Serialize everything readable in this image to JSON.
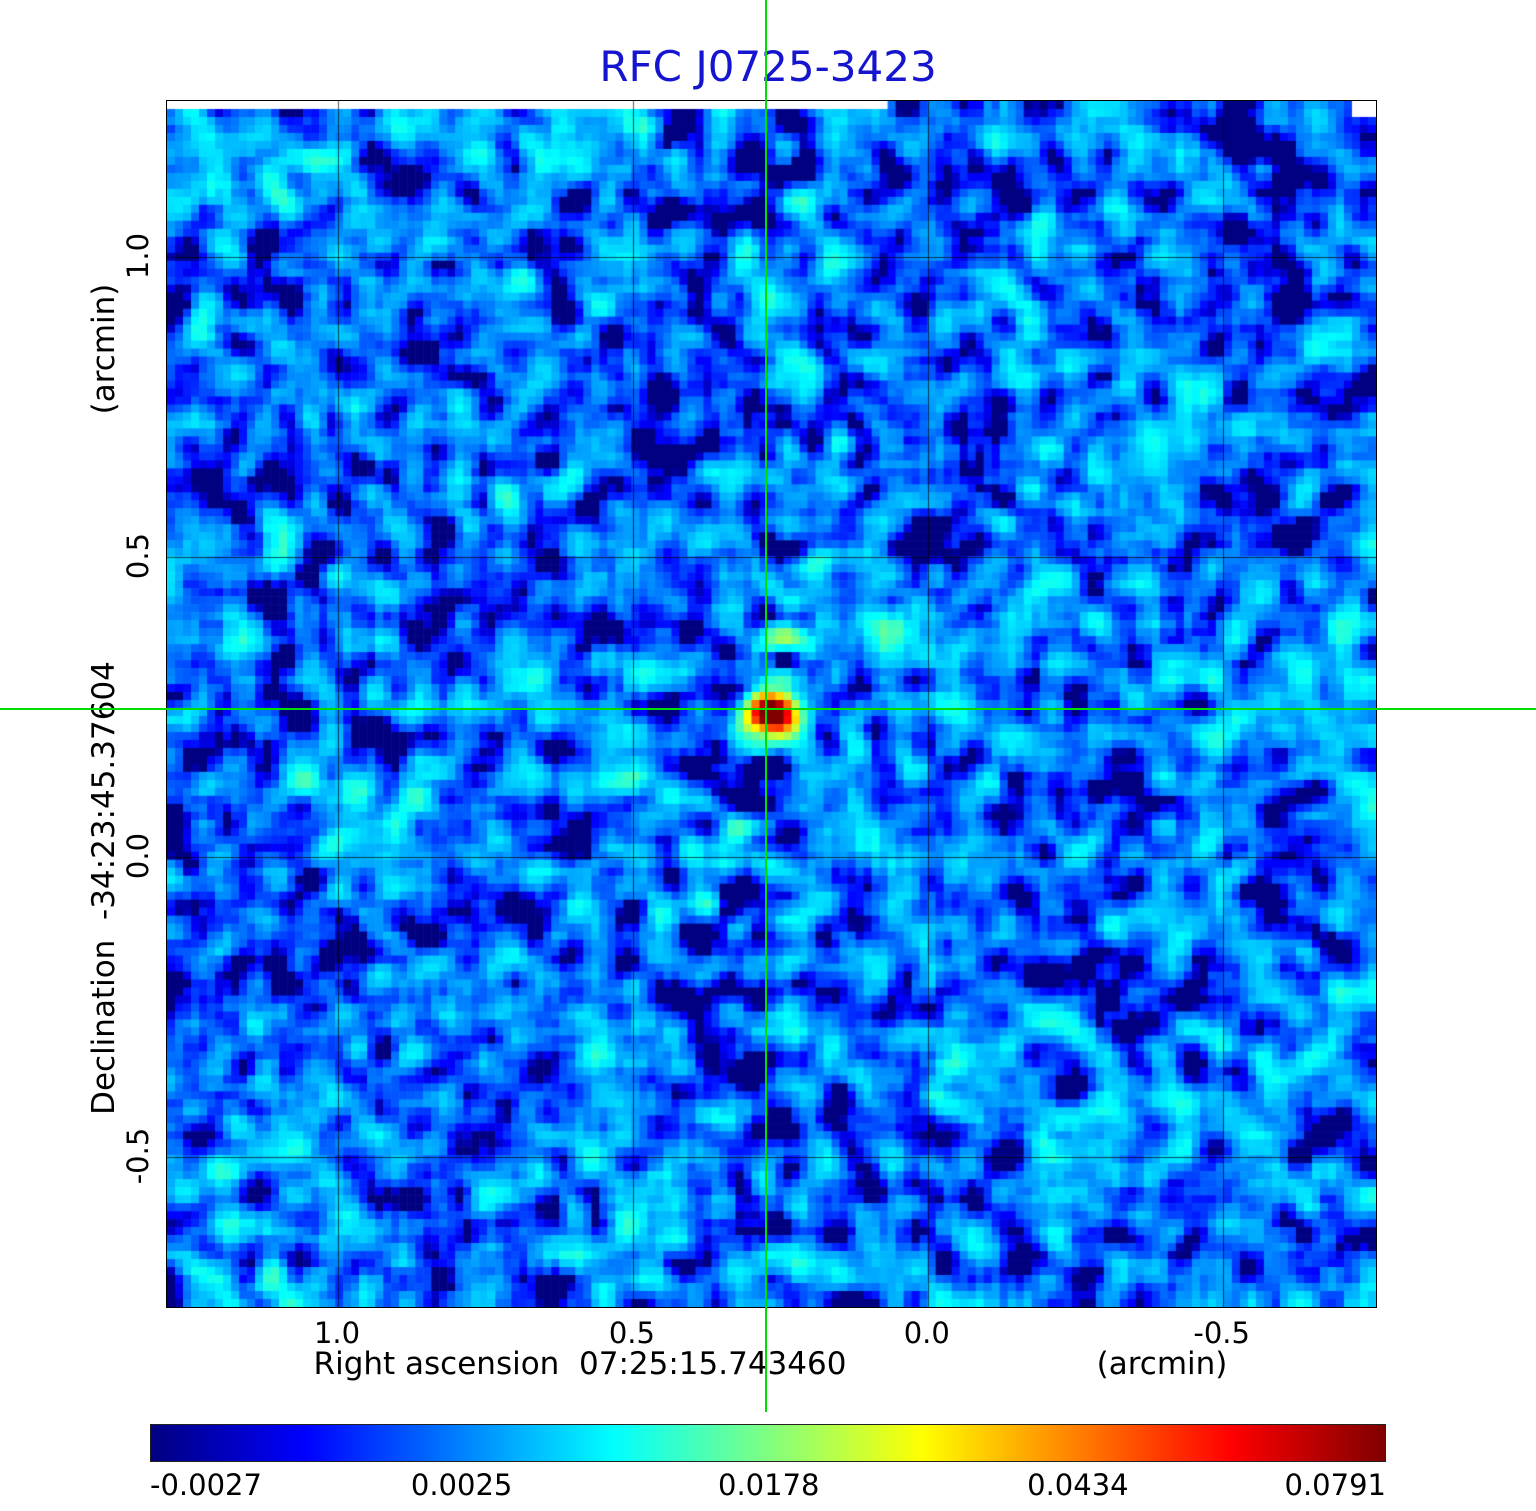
{
  "title": "RFC J0725-3423",
  "colors": {
    "title": "#1515cf",
    "crosshair": "#00dd00",
    "grid": "rgba(0,0,0,0.65)"
  },
  "axes": {
    "y_unit": "(arcmin)",
    "y_label": "Declination  -34:23:45.37604",
    "x_label": "Right ascension  07:25:15.743460",
    "x_unit": "(arcmin)",
    "x_ticks": [
      "1.0",
      "0.5",
      "0.0",
      "-0.5"
    ],
    "y_ticks": [
      "1.0",
      "0.5",
      "0.0",
      "-0.5"
    ]
  },
  "colorbar": {
    "tick_labels": [
      "-0.0027",
      "0.0025",
      "0.0178",
      "0.0434",
      "0.0791"
    ]
  },
  "chart_data": {
    "type": "heatmap",
    "title": "RFC J0725-3423",
    "xlabel": "Right ascension 07:25:15.743460 (arcmin)",
    "ylabel": "Declination -34:23:45.37604 (arcmin)",
    "x_range": [
      1.29,
      -0.76
    ],
    "y_range": [
      1.26,
      -0.75
    ],
    "x_tick_values": [
      1.0,
      0.5,
      0.0,
      -0.5
    ],
    "y_tick_values": [
      1.0,
      0.5,
      0.0,
      -0.5
    ],
    "grid": true,
    "colormap": "jet",
    "value_min": -0.0027,
    "value_max": 0.0791,
    "colorbar_tick_values": [
      -0.0027,
      0.0025,
      0.0178,
      0.0434,
      0.0791
    ],
    "scaling": "value = -0.0027 + 0.0818 * p^2 where p is colormap position 0..1",
    "crosshair": {
      "ra_arcmin": 0.272,
      "dec_arcmin": 0.245
    },
    "peak_source": {
      "ra_arcmin": 0.272,
      "dec_arcmin": 0.245,
      "peak_value": 0.0791
    },
    "secondary_source": {
      "ra_arcmin": 0.068,
      "dec_arcmin": 0.38,
      "peak_value": 0.013
    },
    "background_level": 0.002,
    "noise_rms": 0.002
  }
}
